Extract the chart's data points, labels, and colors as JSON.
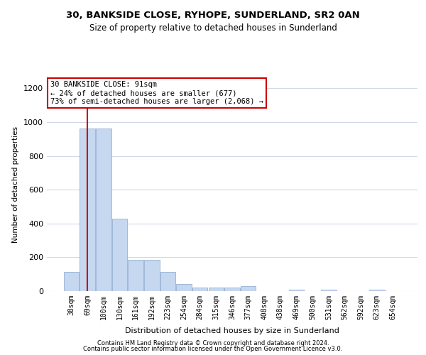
{
  "title1": "30, BANKSIDE CLOSE, RYHOPE, SUNDERLAND, SR2 0AN",
  "title2": "Size of property relative to detached houses in Sunderland",
  "xlabel": "Distribution of detached houses by size in Sunderland",
  "ylabel": "Number of detached properties",
  "categories": [
    "38sqm",
    "69sqm",
    "100sqm",
    "130sqm",
    "161sqm",
    "192sqm",
    "223sqm",
    "254sqm",
    "284sqm",
    "315sqm",
    "346sqm",
    "377sqm",
    "408sqm",
    "438sqm",
    "469sqm",
    "500sqm",
    "531sqm",
    "562sqm",
    "592sqm",
    "623sqm",
    "654sqm"
  ],
  "values": [
    115,
    960,
    960,
    430,
    185,
    185,
    115,
    40,
    20,
    20,
    20,
    30,
    0,
    0,
    8,
    0,
    8,
    0,
    0,
    8,
    0
  ],
  "bar_color": "#c5d8f0",
  "bar_edge_color": "#a0b8d8",
  "vline_color": "#cc0000",
  "vline_x": 1.0,
  "annotation_text": "30 BANKSIDE CLOSE: 91sqm\n← 24% of detached houses are smaller (677)\n73% of semi-detached houses are larger (2,068) →",
  "annotation_box_color": "#ffffff",
  "annotation_box_edge": "#cc0000",
  "footer1": "Contains HM Land Registry data © Crown copyright and database right 2024.",
  "footer2": "Contains public sector information licensed under the Open Government Licence v3.0.",
  "ylim": [
    0,
    1260
  ],
  "yticks": [
    0,
    200,
    400,
    600,
    800,
    1000,
    1200
  ],
  "bg_color": "#ffffff",
  "grid_color": "#d0d8e8"
}
